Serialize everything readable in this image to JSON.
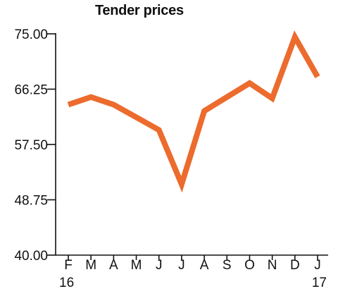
{
  "chart_data": {
    "type": "line",
    "title": "Tender prices",
    "xlabel": "",
    "ylabel": "",
    "categories": [
      "F",
      "M",
      "A",
      "M",
      "J",
      "J",
      "A",
      "S",
      "O",
      "N",
      "D",
      "J"
    ],
    "year_labels": {
      "start": "16",
      "end": "17"
    },
    "y_tick_labels": [
      "75.00",
      "66.25",
      "57.50",
      "48.75",
      "40.00"
    ],
    "y_ticks": [
      75.0,
      66.25,
      57.5,
      48.75,
      40.0
    ],
    "ylim": [
      40.0,
      75.0
    ],
    "series": [
      {
        "values": [
          63.8,
          65.0,
          63.8,
          61.8,
          59.8,
          51.2,
          62.8,
          65.0,
          67.2,
          64.8,
          74.5,
          68.2
        ],
        "color": "#ec6b2d"
      }
    ],
    "grid": false,
    "legend": "none"
  }
}
